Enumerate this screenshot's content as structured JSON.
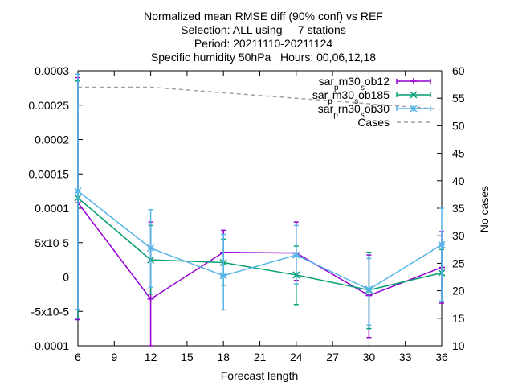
{
  "chart_data": {
    "type": "line",
    "title_lines": [
      "Normalized mean RMSE diff (90% conf) vs REF",
      "Selection: ALL using     7 stations",
      "Period: 20211110-20211124",
      "Specific humidity 50hPa   Hours: 00,06,12,18"
    ],
    "xlabel": "Forecast length",
    "ylabel": "",
    "y2label": "No cases",
    "xlim": [
      6,
      36
    ],
    "ylim": [
      -0.0001,
      0.0003
    ],
    "y2lim": [
      10,
      60
    ],
    "x_ticks": [
      "6",
      "9",
      "12",
      "15",
      "18",
      "21",
      "24",
      "27",
      "30",
      "33",
      "36"
    ],
    "y_ticks": [
      "-0.0001",
      "-5x10-5",
      "0",
      "5x10-5",
      "0.0001",
      "0.00015",
      "0.0002",
      "0.00025",
      "0.0003"
    ],
    "y2_ticks": [
      "10",
      "15",
      "20",
      "25",
      "30",
      "35",
      "40",
      "45",
      "50",
      "55",
      "60"
    ],
    "legend_position": "top-right",
    "grid": false,
    "series": [
      {
        "name_parts": [
          "sar",
          "p",
          "m30",
          "s",
          "ob12"
        ],
        "color": "#9400d3",
        "marker": "plus",
        "x": [
          6,
          12,
          18,
          24,
          30,
          36
        ],
        "y": [
          0.000108,
          -3.2e-05,
          3.6e-05,
          3.5e-05,
          -2.7e-05,
          1.4e-05
        ],
        "err_low": [
          -6.2e-05,
          -0.0001,
          0.0,
          -5e-06,
          -8.8e-05,
          -3.8e-05
        ],
        "err_high": [
          0.00029,
          8e-05,
          6.8e-05,
          8e-05,
          3.2e-05,
          6.6e-05
        ]
      },
      {
        "name_parts": [
          "sar",
          "p",
          "m30",
          "s",
          "ob185"
        ],
        "color": "#009e73",
        "marker": "cross",
        "x": [
          6,
          12,
          18,
          24,
          30,
          36
        ],
        "y": [
          0.000115,
          2.5e-05,
          2.1e-05,
          3e-06,
          -1.9e-05,
          6e-06
        ],
        "err_low": [
          -6e-05,
          -2.5e-05,
          -1.2e-05,
          -4e-05,
          -7.5e-05,
          -3.6e-05
        ],
        "err_high": [
          0.000285,
          7.5e-05,
          5.5e-05,
          4.5e-05,
          3.6e-05,
          4e-05
        ],
        "note": ""
      },
      {
        "name_parts": [
          "sar",
          "p",
          "rn30",
          "s",
          "ob30"
        ],
        "color": "#56b4e9",
        "marker": "star",
        "x": [
          6,
          12,
          18,
          24,
          30,
          36
        ],
        "y": [
          0.000125,
          4.2e-05,
          2e-06,
          3.2e-05,
          -1.8e-05,
          4.7e-05
        ],
        "err_low": [
          -4.7e-05,
          -1.5e-05,
          -4.8e-05,
          -1e-05,
          -7e-05,
          -3.5e-05
        ],
        "err_high": [
          0.000295,
          9.8e-05,
          6.2e-05,
          7.5e-05,
          2.7e-05,
          0.0001
        ]
      },
      {
        "name": "Cases",
        "color": "#a0a0a0",
        "style": "dashed",
        "axis": "y2",
        "x": [
          6,
          12,
          18,
          24,
          30,
          36
        ],
        "y": [
          57,
          57,
          56,
          55,
          54,
          53
        ]
      }
    ]
  }
}
